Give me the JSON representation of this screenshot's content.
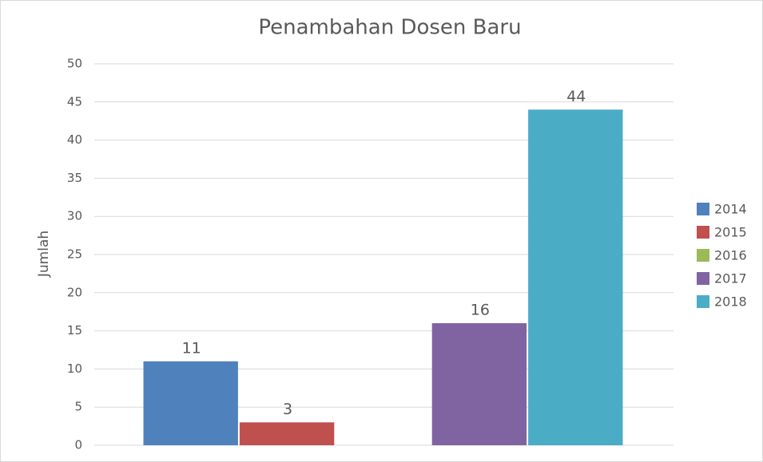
{
  "chart_data": {
    "type": "bar",
    "title": "Penambahan Dosen Baru",
    "y_label": "Jumlah",
    "categories": [
      null
    ],
    "series": [
      {
        "name": "2014",
        "color": "#4f81bd",
        "values": [
          11
        ]
      },
      {
        "name": "2015",
        "color": "#c0504d",
        "values": [
          3
        ]
      },
      {
        "name": "2016",
        "color": "#9bbb59",
        "values": [
          null
        ]
      },
      {
        "name": "2017",
        "color": "#8064a2",
        "values": [
          16
        ]
      },
      {
        "name": "2018",
        "color": "#4bacc6",
        "values": [
          44
        ]
      }
    ],
    "ylim": [
      0,
      50
    ],
    "yticks": [
      0,
      5,
      10,
      15,
      20,
      25,
      30,
      35,
      40,
      45,
      50
    ],
    "grid": true,
    "legend": "right"
  }
}
